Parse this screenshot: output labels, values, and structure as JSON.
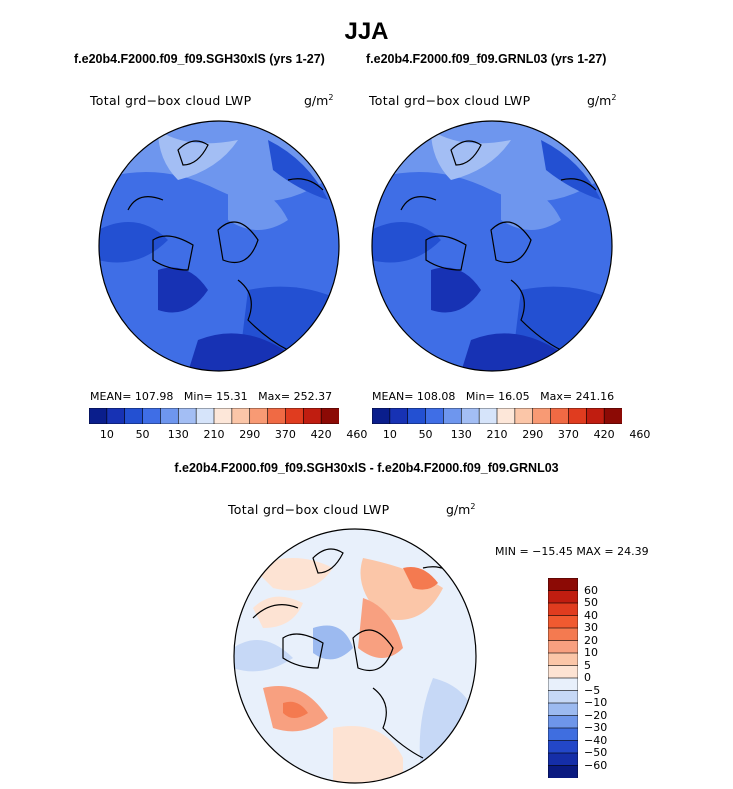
{
  "title": "JJA",
  "panels": [
    {
      "case_label": "f.e20b4.F2000.f09_f09.SGH30xlS (yrs 1-27)",
      "variable_label": "Total grd−box cloud LWP",
      "units_base": "g/m",
      "units_exp": "2",
      "stats": {
        "mean_label": "MEAN=",
        "mean": "107.98",
        "min_label": "Min=",
        "min": "15.31",
        "max_label": "Max=",
        "max": "252.37"
      }
    },
    {
      "case_label": "f.e20b4.F2000.f09_f09.GRNL03 (yrs 1-27)",
      "variable_label": "Total grd−box cloud LWP",
      "units_base": "g/m",
      "units_exp": "2",
      "stats": {
        "mean_label": "MEAN=",
        "mean": "108.08",
        "min_label": "Min=",
        "min": "16.05",
        "max_label": "Max=",
        "max": "241.16"
      }
    }
  ],
  "colorbar_abs": {
    "ticks": [
      "10",
      "50",
      "130",
      "210",
      "290",
      "370",
      "420",
      "460"
    ],
    "colors": [
      "#0a1e8c",
      "#1732b4",
      "#2350d2",
      "#3f6ee6",
      "#6e96ee",
      "#a3bef4",
      "#d6e4fa",
      "#fde7d9",
      "#fbc6a8",
      "#f89a74",
      "#f06a44",
      "#e03c1f",
      "#c01d10",
      "#8c0a05"
    ]
  },
  "difference": {
    "header": "f.e20b4.F2000.f09_f09.SGH30xlS - f.e20b4.F2000.f09_f09.GRNL03",
    "variable_label": "Total grd−box cloud LWP",
    "units_base": "g/m",
    "units_exp": "2",
    "minmax": "MIN = −15.45 MAX =  24.39",
    "colorbar_ticks": [
      "60",
      "50",
      "40",
      "30",
      "20",
      "10",
      "5",
      "0",
      "−5",
      "−10",
      "−20",
      "−30",
      "−40",
      "−50",
      "−60"
    ],
    "colorbar_colors": [
      "#8c0a05",
      "#c01d10",
      "#e03c1f",
      "#f05a30",
      "#f47a50",
      "#f8a080",
      "#fbc6a8",
      "#fde3d3",
      "#e8f0fb",
      "#c6d8f6",
      "#9cbaf0",
      "#6e96ea",
      "#3f6ee0",
      "#2347c8",
      "#152ea8",
      "#0a1a80"
    ]
  }
}
